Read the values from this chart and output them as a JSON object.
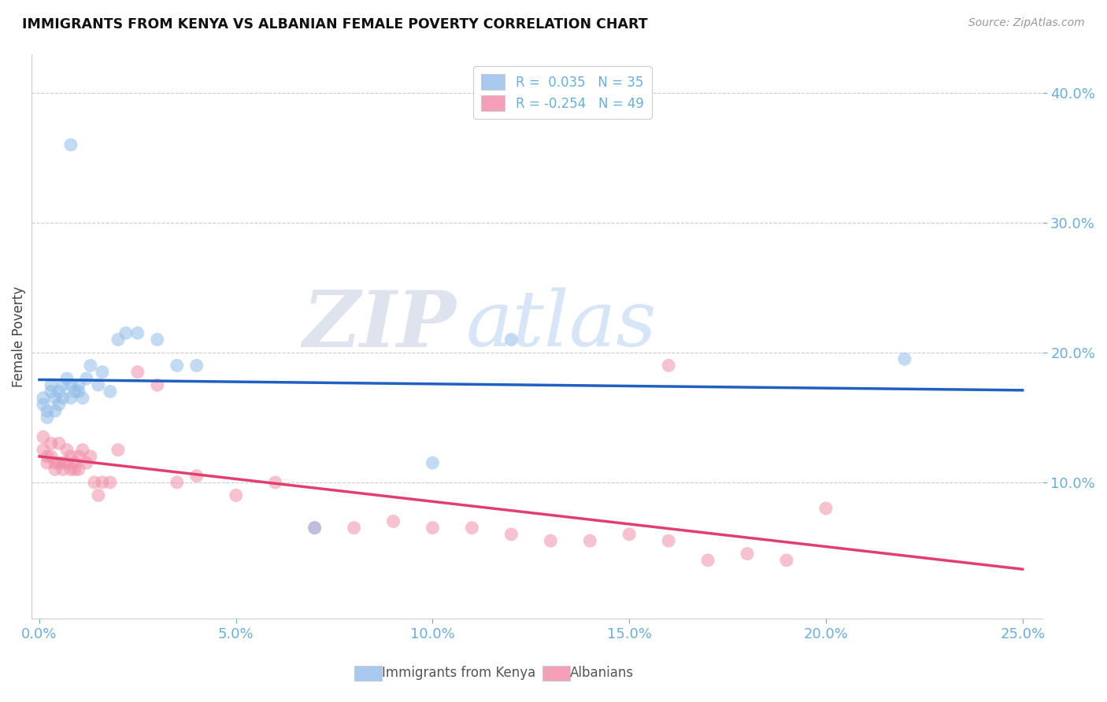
{
  "title": "IMMIGRANTS FROM KENYA VS ALBANIAN FEMALE POVERTY CORRELATION CHART",
  "source": "Source: ZipAtlas.com",
  "tick_color": "#6baed6",
  "ylabel": "Female Poverty",
  "x_tick_labels": [
    "0.0%",
    "5.0%",
    "10.0%",
    "15.0%",
    "20.0%",
    "25.0%"
  ],
  "x_tick_values": [
    0.0,
    0.05,
    0.1,
    0.15,
    0.2,
    0.25
  ],
  "y_tick_labels": [
    "10.0%",
    "20.0%",
    "30.0%",
    "40.0%"
  ],
  "y_tick_values": [
    0.1,
    0.2,
    0.3,
    0.4
  ],
  "xlim": [
    -0.002,
    0.255
  ],
  "ylim": [
    -0.005,
    0.43
  ],
  "legend_entry1": "R =  0.035   N = 35",
  "legend_entry2": "R = -0.254   N = 49",
  "legend_color1": "#a8c8f0",
  "legend_color2": "#f4a0b8",
  "watermark_zip": "ZIP",
  "watermark_atlas": "atlas",
  "kenya_x": [
    0.001,
    0.001,
    0.002,
    0.002,
    0.003,
    0.003,
    0.004,
    0.004,
    0.005,
    0.005,
    0.006,
    0.006,
    0.007,
    0.008,
    0.008,
    0.009,
    0.01,
    0.01,
    0.011,
    0.012,
    0.013,
    0.015,
    0.016,
    0.018,
    0.02,
    0.022,
    0.025,
    0.03,
    0.035,
    0.04,
    0.07,
    0.1,
    0.12,
    0.22,
    0.008
  ],
  "kenya_y": [
    0.165,
    0.16,
    0.155,
    0.15,
    0.175,
    0.17,
    0.165,
    0.155,
    0.17,
    0.16,
    0.175,
    0.165,
    0.18,
    0.175,
    0.165,
    0.17,
    0.175,
    0.17,
    0.165,
    0.18,
    0.19,
    0.175,
    0.185,
    0.17,
    0.21,
    0.215,
    0.215,
    0.21,
    0.19,
    0.19,
    0.065,
    0.115,
    0.21,
    0.195,
    0.36
  ],
  "albanian_x": [
    0.001,
    0.001,
    0.002,
    0.002,
    0.003,
    0.003,
    0.004,
    0.004,
    0.005,
    0.005,
    0.006,
    0.006,
    0.007,
    0.007,
    0.008,
    0.008,
    0.009,
    0.009,
    0.01,
    0.01,
    0.011,
    0.012,
    0.013,
    0.014,
    0.015,
    0.016,
    0.018,
    0.02,
    0.025,
    0.03,
    0.035,
    0.04,
    0.05,
    0.06,
    0.07,
    0.08,
    0.09,
    0.1,
    0.11,
    0.12,
    0.13,
    0.14,
    0.15,
    0.16,
    0.17,
    0.18,
    0.19,
    0.2,
    0.16
  ],
  "albanian_y": [
    0.135,
    0.125,
    0.12,
    0.115,
    0.13,
    0.12,
    0.115,
    0.11,
    0.13,
    0.115,
    0.115,
    0.11,
    0.125,
    0.115,
    0.12,
    0.11,
    0.115,
    0.11,
    0.12,
    0.11,
    0.125,
    0.115,
    0.12,
    0.1,
    0.09,
    0.1,
    0.1,
    0.125,
    0.185,
    0.175,
    0.1,
    0.105,
    0.09,
    0.1,
    0.065,
    0.065,
    0.07,
    0.065,
    0.065,
    0.06,
    0.055,
    0.055,
    0.06,
    0.055,
    0.04,
    0.045,
    0.04,
    0.08,
    0.19
  ],
  "kenya_color": "#90bce8",
  "albanian_color": "#f090a8",
  "kenya_line_color": "#2060c0",
  "albanian_line_color": "#e04070",
  "bg_color": "#ffffff",
  "grid_color": "#cccccc"
}
